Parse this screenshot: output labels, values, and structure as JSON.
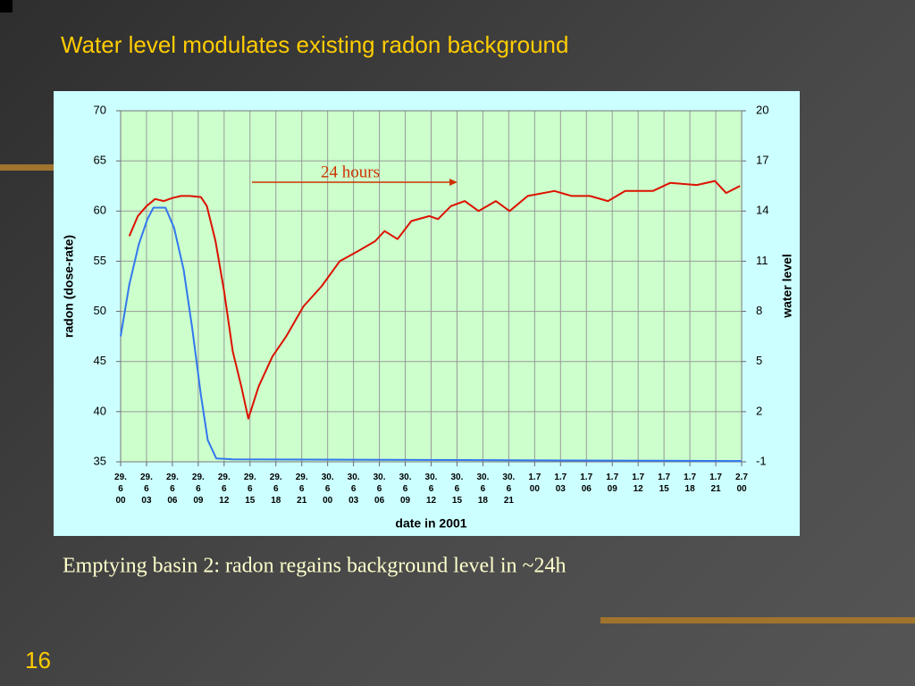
{
  "slide": {
    "title": "Water level modulates existing radon background",
    "caption": "Emptying basin 2: radon regains background level in ~24h",
    "page_number": "16"
  },
  "chart_data": {
    "type": "line",
    "x_label": "date in 2001",
    "y_label": "radon (dose-rate)",
    "y2_label": "water level",
    "annotation": "24 hours",
    "annotation_color": "#cc3300",
    "grid": true,
    "xlim": [
      0,
      72
    ],
    "xticks": [
      {
        "value": 0,
        "label": "29.\n6\n00"
      },
      {
        "value": 3,
        "label": "29.\n6\n03"
      },
      {
        "value": 6,
        "label": "29.\n6\n06"
      },
      {
        "value": 9,
        "label": "29.\n6\n09"
      },
      {
        "value": 12,
        "label": "29.\n6\n12"
      },
      {
        "value": 15,
        "label": "29.\n6\n15"
      },
      {
        "value": 18,
        "label": "29.\n6\n18"
      },
      {
        "value": 21,
        "label": "29.\n6\n21"
      },
      {
        "value": 24,
        "label": "30.\n6\n00"
      },
      {
        "value": 27,
        "label": "30.\n6\n03"
      },
      {
        "value": 30,
        "label": "30.\n6\n06"
      },
      {
        "value": 33,
        "label": "30.\n6\n09"
      },
      {
        "value": 36,
        "label": "30.\n6\n12"
      },
      {
        "value": 39,
        "label": "30.\n6\n15"
      },
      {
        "value": 42,
        "label": "30.\n6\n18"
      },
      {
        "value": 45,
        "label": "30.\n6\n21"
      },
      {
        "value": 48,
        "label": "1.7\n00"
      },
      {
        "value": 51,
        "label": "1.7\n03"
      },
      {
        "value": 54,
        "label": "1.7\n06"
      },
      {
        "value": 57,
        "label": "1.7\n09"
      },
      {
        "value": 60,
        "label": "1.7\n12"
      },
      {
        "value": 63,
        "label": "1.7\n15"
      },
      {
        "value": 66,
        "label": "1.7\n18"
      },
      {
        "value": 69,
        "label": "1.7\n21"
      },
      {
        "value": 72,
        "label": "2.7\n00"
      }
    ],
    "ylim": [
      35,
      70
    ],
    "yticks": [
      35,
      40,
      45,
      50,
      55,
      60,
      65,
      70
    ],
    "y2lim": [
      -1,
      20
    ],
    "y2ticks": [
      -1,
      2,
      5,
      8,
      11,
      14,
      17,
      20
    ],
    "series": [
      {
        "name": "radon",
        "color": "#dd1100",
        "axis": "y",
        "x": [
          1,
          2,
          3,
          4,
          5,
          6,
          7,
          8,
          9.3,
          10,
          11,
          12,
          13,
          14,
          14.8,
          16,
          17.6,
          19.2,
          21.2,
          23.3,
          25.4,
          27.5,
          29.5,
          30.6,
          32.1,
          33.7,
          35.8,
          36.8,
          38.3,
          39.9,
          41.5,
          43.5,
          45.1,
          47.2,
          50.3,
          52.3,
          54.4,
          56.5,
          58.5,
          61.7,
          63.7,
          66.8,
          68.9,
          70.2,
          71.8
        ],
        "values": [
          57.5,
          59.5,
          60.5,
          61.2,
          61,
          61.3,
          61.5,
          61.5,
          61.4,
          60.5,
          57,
          52,
          46,
          42.5,
          39.3,
          42.5,
          45.5,
          47.5,
          50.5,
          52.5,
          55,
          56,
          57,
          58,
          57.2,
          59,
          59.5,
          59.2,
          60.5,
          61,
          60,
          61,
          60,
          61.5,
          62,
          61.5,
          61.5,
          61,
          62,
          62,
          62.8,
          62.6,
          63,
          61.8,
          62.5
        ]
      },
      {
        "name": "water level",
        "color": "#3377ee",
        "axis": "y2",
        "x": [
          0,
          1,
          2.1,
          3.1,
          3.8,
          5.2,
          6.2,
          7.3,
          8.3,
          9.3,
          10.1,
          11.1,
          13,
          72
        ],
        "values": [
          6.5,
          9.6,
          12,
          13.5,
          14.2,
          14.2,
          13,
          10.5,
          7,
          3,
          0.3,
          -0.8,
          -0.85,
          -0.95
        ]
      }
    ]
  }
}
